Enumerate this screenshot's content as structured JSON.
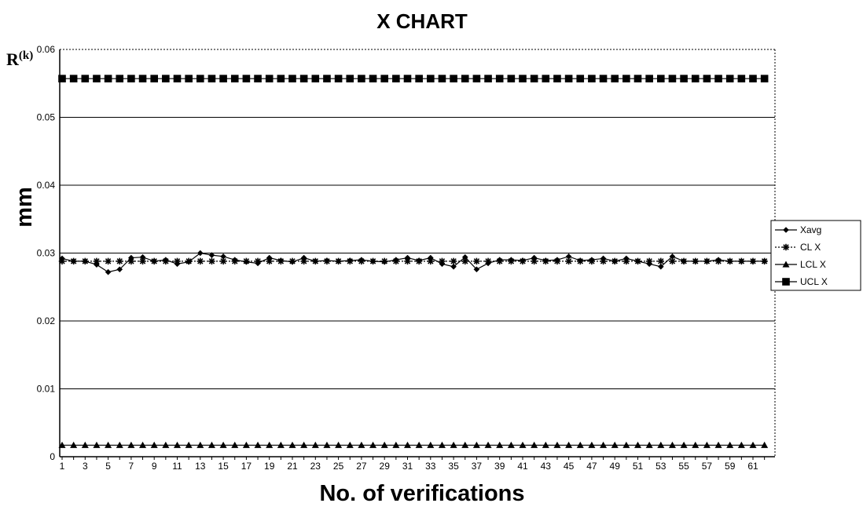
{
  "chart_data": {
    "type": "line",
    "title": "X CHART",
    "xlabel": "No. of verifications",
    "ylabel": "mm",
    "annotation": {
      "base": "R",
      "sup": "(k)"
    },
    "ylim": [
      0,
      0.06
    ],
    "yticks": [
      "0",
      "0.01",
      "0.02",
      "0.03",
      "0.04",
      "0.05",
      "0.06"
    ],
    "xlim": [
      1,
      62
    ],
    "xtick_labels": [
      "1",
      "3",
      "5",
      "7",
      "9",
      "11",
      "13",
      "15",
      "17",
      "19",
      "21",
      "23",
      "25",
      "27",
      "29",
      "31",
      "33",
      "35",
      "37",
      "39",
      "41",
      "43",
      "45",
      "47",
      "49",
      "51",
      "53",
      "55",
      "57",
      "59",
      "61"
    ],
    "grid": true,
    "legend_position": "right",
    "series": [
      {
        "name": "Xavg",
        "marker": "diamond",
        "line": "solid",
        "color": "#000000",
        "values": [
          0.0292,
          0.0288,
          0.0288,
          0.0283,
          0.0272,
          0.0276,
          0.0293,
          0.0294,
          0.0288,
          0.029,
          0.0284,
          0.0287,
          0.03,
          0.0297,
          0.0295,
          0.029,
          0.0287,
          0.0285,
          0.0293,
          0.0289,
          0.0287,
          0.0293,
          0.0288,
          0.0289,
          0.0288,
          0.0289,
          0.029,
          0.0288,
          0.0287,
          0.029,
          0.0293,
          0.0289,
          0.0293,
          0.0284,
          0.028,
          0.0294,
          0.0276,
          0.0285,
          0.029,
          0.029,
          0.0289,
          0.0293,
          0.0289,
          0.029,
          0.0295,
          0.0289,
          0.029,
          0.0292,
          0.0288,
          0.0292,
          0.0288,
          0.0284,
          0.028,
          0.0295,
          0.0288,
          0.0288,
          0.0288,
          0.029,
          0.0288,
          0.0288,
          0.0288,
          0.0288
        ]
      },
      {
        "name": "CL X",
        "marker": "asterisk",
        "line": "dotted",
        "color": "#000000",
        "constant": 0.0288
      },
      {
        "name": "LCL X",
        "marker": "triangle",
        "line": "solid",
        "color": "#000000",
        "constant": 0.0017
      },
      {
        "name": "UCL X",
        "marker": "square",
        "line": "solid",
        "color": "#000000",
        "constant": 0.0557
      }
    ]
  }
}
